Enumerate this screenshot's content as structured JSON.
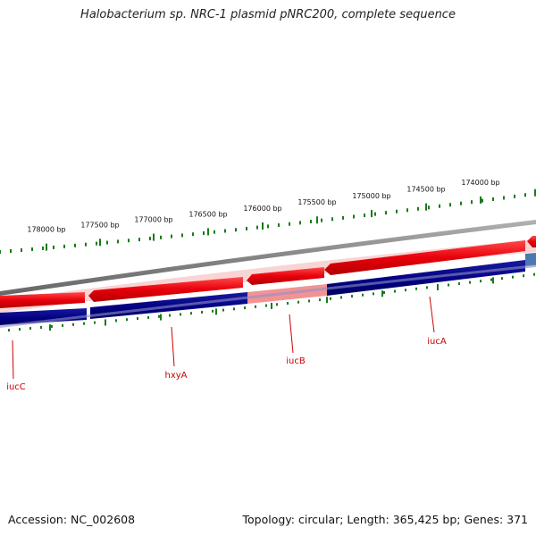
{
  "title": "Halobacterium sp. NRC-1 plasmid pNRC200, complete sequence",
  "footer": {
    "accession": "Accession: NC_002608",
    "summary": "Topology: circular; Length: 365,425 bp; Genes: 371"
  },
  "colors": {
    "forward_gene": "#e8000b",
    "reverse_gene": "#000080",
    "highlight": "#f08080",
    "backbone": "#888888",
    "ticks": "#1a7a1a",
    "label": "#cc0000"
  },
  "ticks_outer": [
    {
      "label": "178000 bp"
    },
    {
      "label": "177500 bp"
    },
    {
      "label": "177000 bp"
    },
    {
      "label": "176500 bp"
    },
    {
      "label": "176000 bp"
    },
    {
      "label": "175500 bp"
    },
    {
      "label": "175000 bp"
    },
    {
      "label": "174500 bp"
    },
    {
      "label": "174000 bp"
    }
  ],
  "genes": [
    {
      "name": "iucC"
    },
    {
      "name": "hxyA"
    },
    {
      "name": "iucB"
    },
    {
      "name": "iucA"
    }
  ]
}
